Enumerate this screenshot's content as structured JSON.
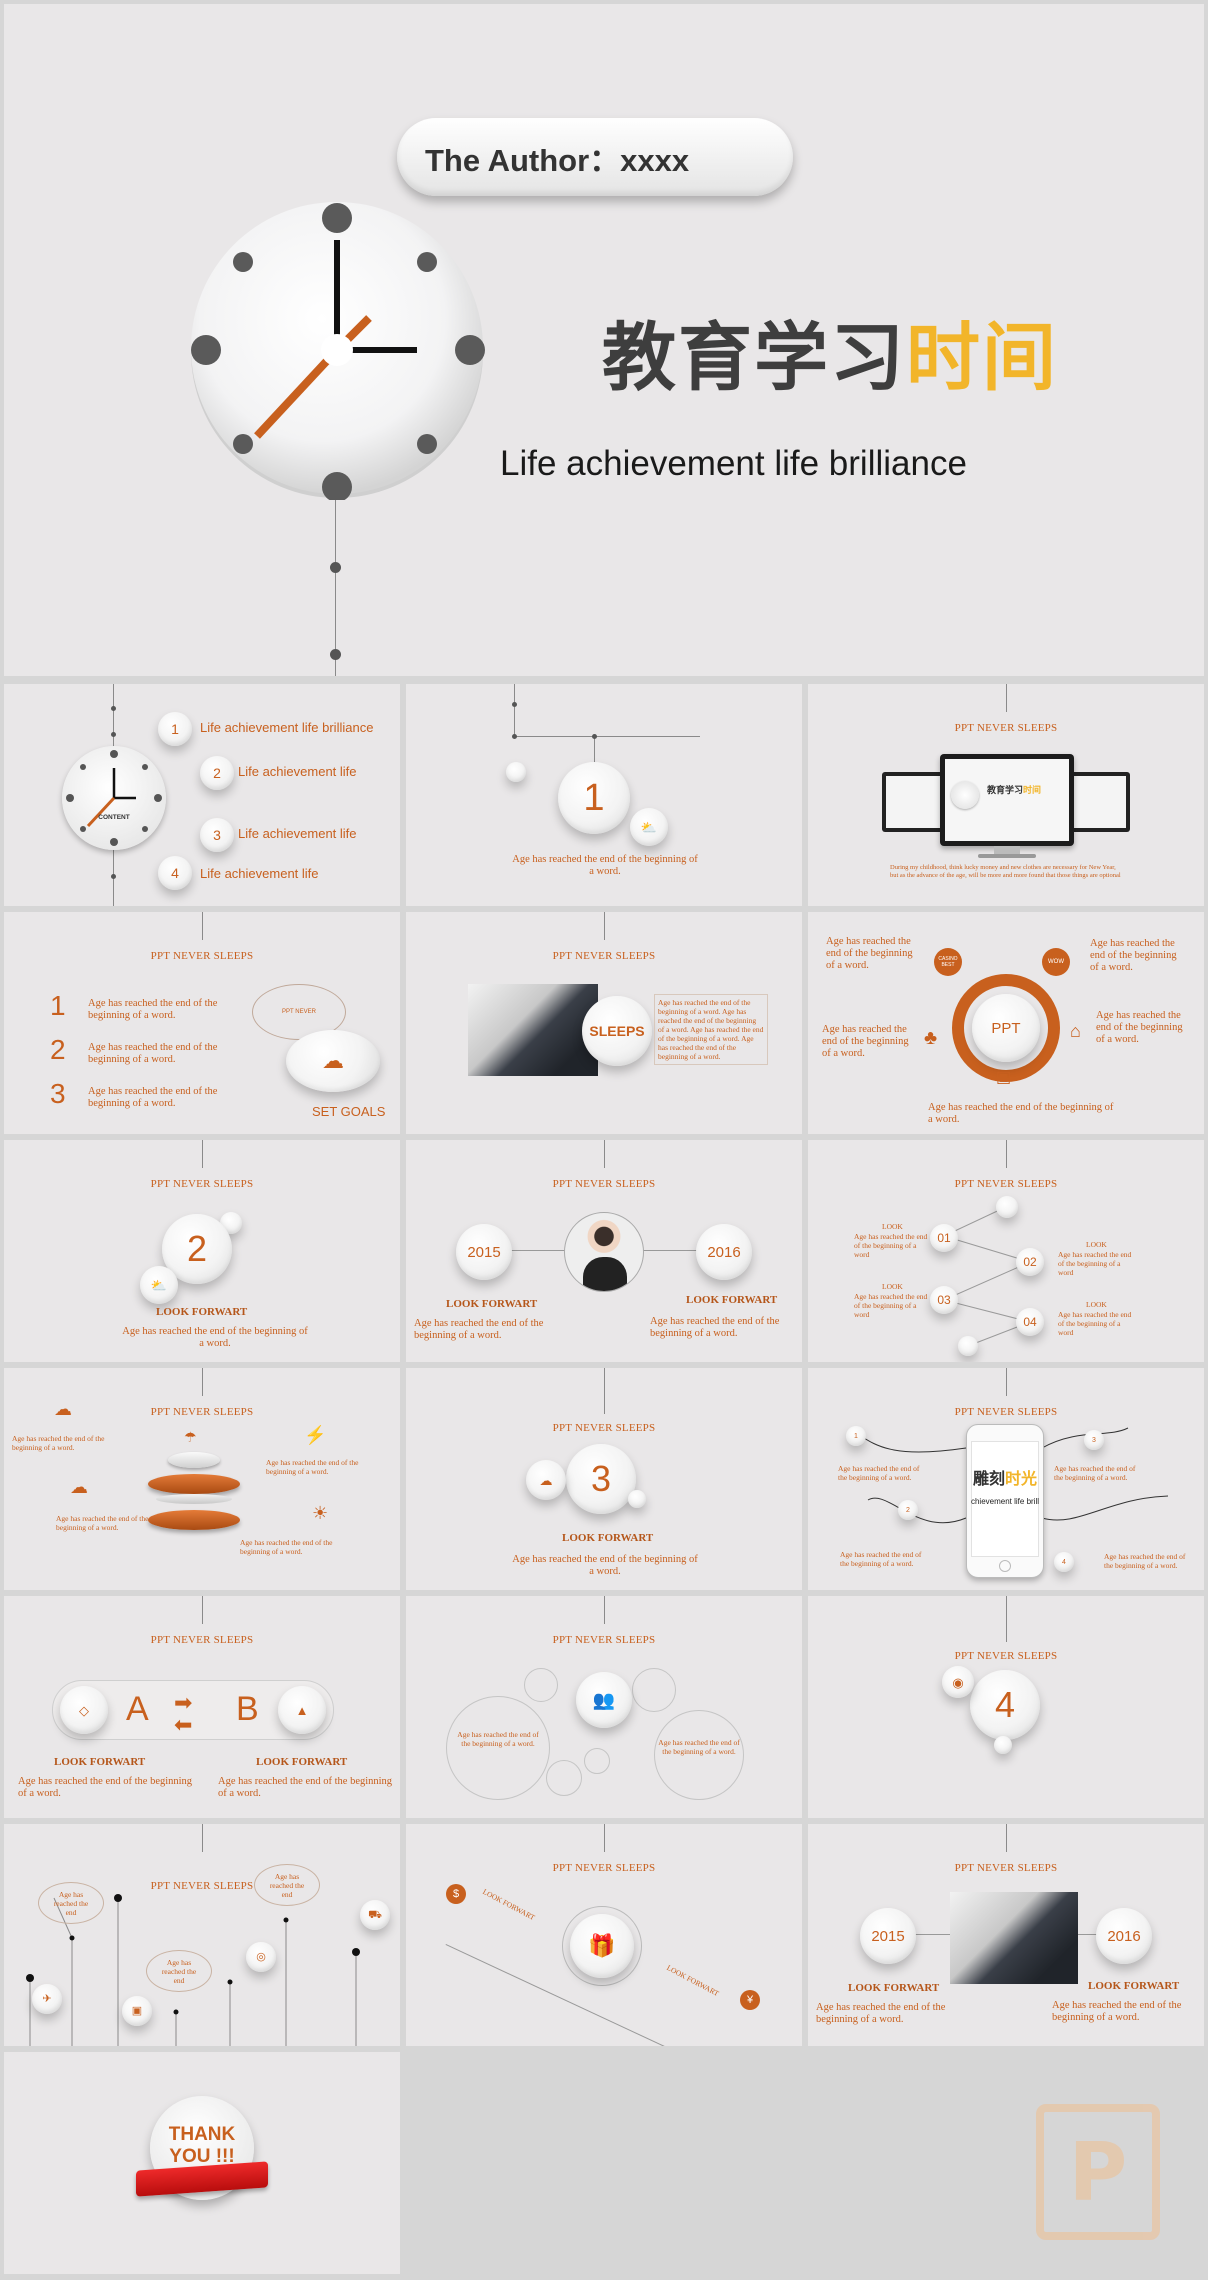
{
  "cover": {
    "author": "The Author：xxxx",
    "title_dark": "教育学习",
    "title_accent": "时间",
    "subtitle": "Life achievement life brilliance"
  },
  "common": {
    "ppt_never_sleeps": "PPT NEVER SLEEPS",
    "age_text": "Age has reached the end of the beginning of a word.",
    "look_forwart": "LOOK FORWART"
  },
  "contents": {
    "center_label": "CONTENT",
    "items": [
      {
        "num": "1",
        "label": "Life achievement life brilliance"
      },
      {
        "num": "2",
        "label": "Life achievement life"
      },
      {
        "num": "3",
        "label": "Life achievement life"
      },
      {
        "num": "4",
        "label": "Life achievement life"
      }
    ]
  },
  "section1": {
    "num": "1",
    "text": "Age has reached the end of the beginning of a word."
  },
  "monitors": {
    "screen_title_dark": "教育学习",
    "screen_title_accent": "时间",
    "caption": "During my childhood, think lucky money and new clothes are necessary for New Year, but as the advance of the age, will be more and more found that those things are optional"
  },
  "numbered_list": {
    "items": [
      {
        "num": "1",
        "text": "Age has reached the end of the beginning of a word."
      },
      {
        "num": "2",
        "text": "Age has reached the end of the beginning of a word."
      },
      {
        "num": "3",
        "text": "Age has reached the end of the beginning of a word."
      }
    ],
    "speech": "PPT NEVER",
    "set_goals": "SET GOALS"
  },
  "sleeps_slide": {
    "label": "SLEEPS",
    "side_text": "Age has reached the end of the beginning of a word. Age has reached the end of the beginning of a word. Age has reached the end of the beginning of a word. Age has reached the end of the beginning of a word."
  },
  "ppt_wheel": {
    "center": "PPT",
    "tl": "Age has reached the end of the beginning of a word.",
    "tr": "Age has reached the end of the beginning of a word.",
    "ml": "Age has reached the end of the beginning of a word.",
    "mr": "Age has reached the end of the beginning of a word.",
    "bottom": "Age has reached the end of the beginning of a word.",
    "badge1": "CASINO BEST",
    "badge2": "WOW"
  },
  "section2": {
    "num": "2",
    "head": "LOOK FORWART",
    "text": "Age has reached the end of the beginning of a word."
  },
  "years_slide": {
    "year_left": "2015",
    "year_right": "2016",
    "left_head": "LOOK FORWART",
    "left_text": "Age has reached the end of the beginning of a word.",
    "right_head": "LOOK FORWART",
    "right_text": "Age has reached the end of the beginning of a word."
  },
  "steps_slide": {
    "nums": [
      "01",
      "02",
      "03",
      "04"
    ],
    "look": "LOOK",
    "text": "Age has reached the end of the beginning of a word"
  },
  "weather_slide": {
    "texts": [
      "Age has reached the end of the beginning of a word.",
      "Age has reached the end of the beginning of a word.",
      "Age has reached the end of the beginning of a word.",
      "Age has reached the end of the beginning of a word."
    ]
  },
  "section3": {
    "num": "3",
    "head": "LOOK FORWART",
    "text": "Age has reached the end of the beginning of a word."
  },
  "phone_slide": {
    "title_dark": "雕刻",
    "title_accent": "时光",
    "sub": "chievement life brill",
    "nums": [
      "1",
      "2",
      "3",
      "4"
    ],
    "text": "Age has reached the end of the beginning of a word."
  },
  "ab_slide": {
    "a": "A",
    "b": "B",
    "left_head": "LOOK FORWART",
    "left_text": "Age has reached the end of the beginning of a word.",
    "right_head": "LOOK FORWART",
    "right_text": "Age has reached the end of the beginning of a word."
  },
  "circles_slide": {
    "left": "Age has reached the end of the beginning of a word.",
    "right": "Age has reached the end of the beginning of a word."
  },
  "section4": {
    "num": "4"
  },
  "pins_slide": {
    "b1": "Age has reached the end",
    "b2": "Age has reached the end",
    "b3": "Age has reached the end"
  },
  "gift_slide": {
    "left_tag": "LOOK FORWART",
    "right_tag": "LOOK FORWART"
  },
  "years2_slide": {
    "year_left": "2015",
    "year_right": "2016",
    "left_head": "LOOK FORWART",
    "left_text": "Age has reached the end of the beginning of a word.",
    "right_head": "LOOK FORWART",
    "right_text": "Age has reached the end of the beginning of a word."
  },
  "thanks": {
    "line1": "THANK",
    "line2": "YOU !!!"
  },
  "colors": {
    "accent": "#c8601e",
    "yellow": "#f2b52a",
    "bg": "#e9e7e8"
  }
}
